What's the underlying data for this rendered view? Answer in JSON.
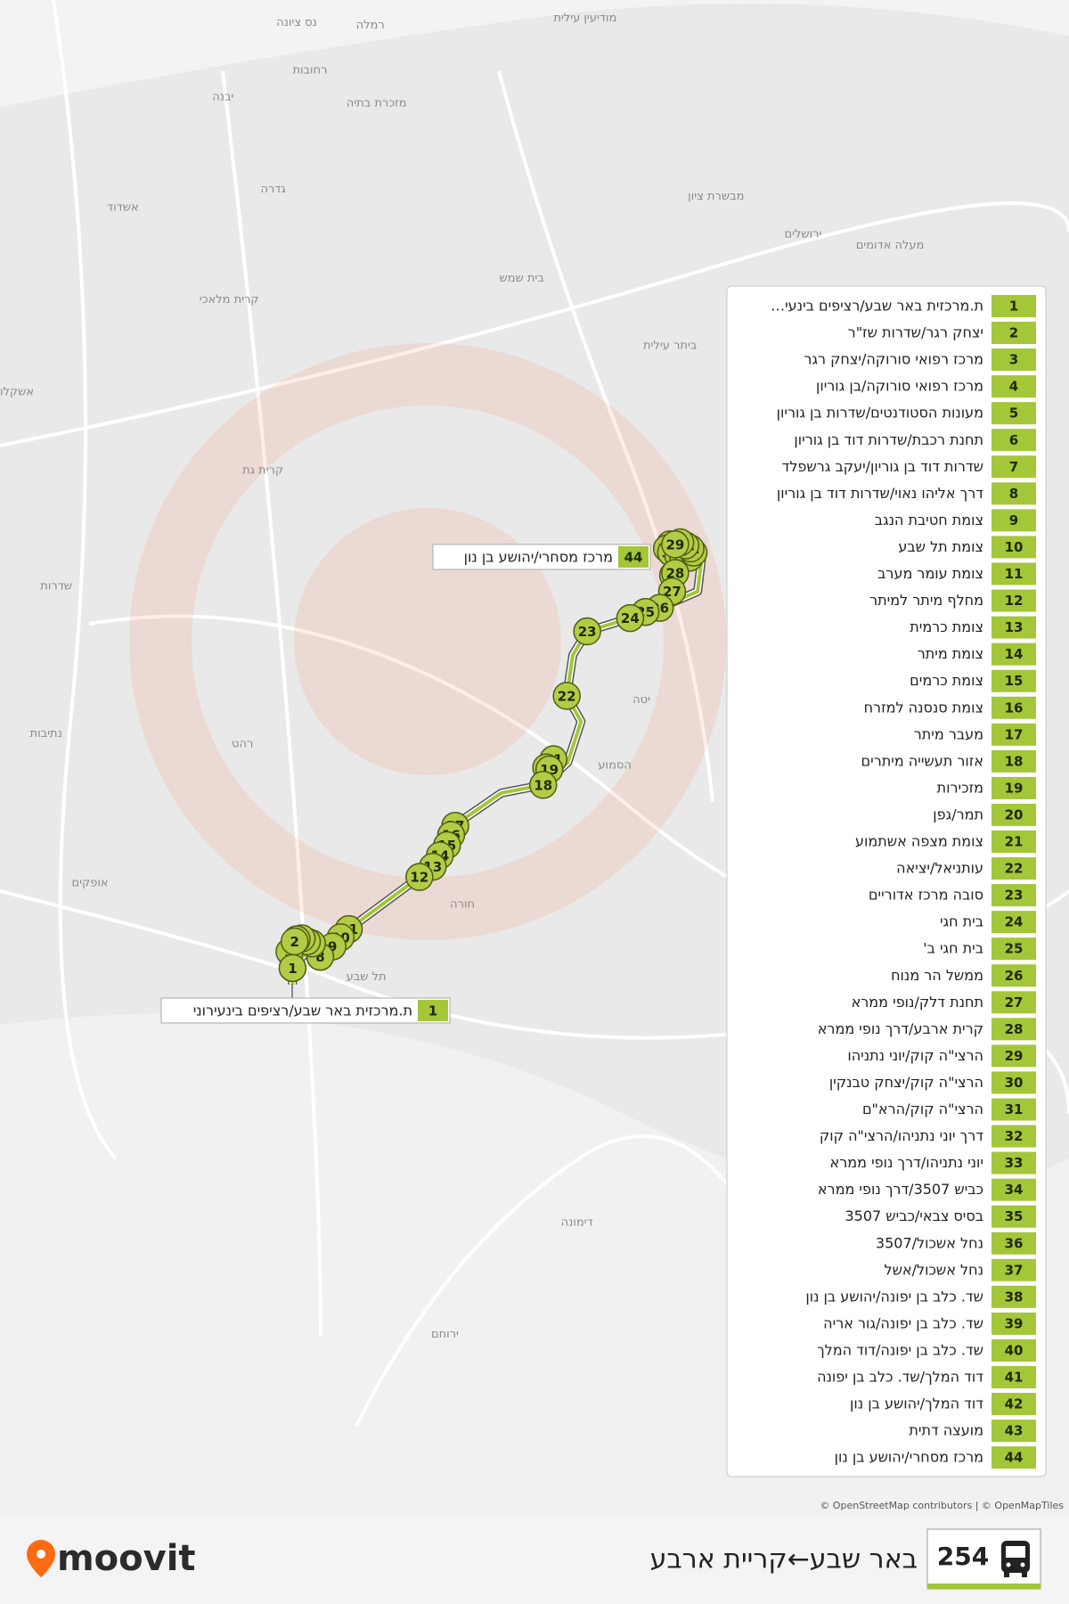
{
  "route": {
    "number": "254",
    "title": "באר שבע←קריית ארבע"
  },
  "logo": "moovit",
  "attribution": "© OpenStreetMap contributors | © OpenMapTiles",
  "callouts": [
    {
      "number": "1",
      "label": "ת.מרכזית באר שבע/רציפים בינעירוני"
    },
    {
      "number": "44",
      "label": "מרכז מסחרי/יהושע בן נון"
    }
  ],
  "map_labels": [
    "אשדוד",
    "יבנה",
    "רחובות",
    "נס ציונה",
    "רמלה",
    "מודיעין עילית",
    "גדרה",
    "מזכרת בתיה",
    "קרית מלאכי",
    "בית שמש",
    "ירושלים",
    "מעלה אדומים",
    "ביתר עילית",
    "אשקלון",
    "קרית גת",
    "שדרות",
    "נתיבות",
    "רהט",
    "אופקים",
    "דימונה",
    "ירוחם",
    "תל שבע",
    "חורה",
    "יטה",
    "הסמוע",
    "מבשרת ציון"
  ],
  "stops": [
    {
      "number": 1,
      "name": "ת.מרכזית באר שבע/רציפים בינעי…"
    },
    {
      "number": 2,
      "name": "יצחק רגר/שדרות שז\"ר"
    },
    {
      "number": 3,
      "name": "מרכז רפואי סורוקה/יצחק רגר"
    },
    {
      "number": 4,
      "name": "מרכז רפואי סורוקה/בן גוריון"
    },
    {
      "number": 5,
      "name": "מעונות הסטודנטים/שדרות בן גוריון"
    },
    {
      "number": 6,
      "name": "תחנת רכבת/שדרות דוד בן גוריון"
    },
    {
      "number": 7,
      "name": "שדרות דוד בן גוריון/יעקב גרשפלד"
    },
    {
      "number": 8,
      "name": "דרך אליהו נאוי/שדרות דוד בן גוריון"
    },
    {
      "number": 9,
      "name": "צומת חטיבת הנגב"
    },
    {
      "number": 10,
      "name": "צומת תל שבע"
    },
    {
      "number": 11,
      "name": "צומת עומר מערב"
    },
    {
      "number": 12,
      "name": "מחלף מיתר למיתר"
    },
    {
      "number": 13,
      "name": "צומת כרמית"
    },
    {
      "number": 14,
      "name": "צומת מיתר"
    },
    {
      "number": 15,
      "name": "צומת כרמים"
    },
    {
      "number": 16,
      "name": "צומת סנסנה למזרח"
    },
    {
      "number": 17,
      "name": "מעבר מיתר"
    },
    {
      "number": 18,
      "name": "אזור תעשייה מיתרים"
    },
    {
      "number": 19,
      "name": "מזכירות"
    },
    {
      "number": 20,
      "name": "תמר/גפן"
    },
    {
      "number": 21,
      "name": "צומת מצפה אשתמוע"
    },
    {
      "number": 22,
      "name": "עותניאל/יציאה"
    },
    {
      "number": 23,
      "name": "סובה מרכז אדוריים"
    },
    {
      "number": 24,
      "name": "בית חגי"
    },
    {
      "number": 25,
      "name": "בית חגי ב'"
    },
    {
      "number": 26,
      "name": "ממשל הר מנוח"
    },
    {
      "number": 27,
      "name": "תחנת דלק/נופי ממרא"
    },
    {
      "number": 28,
      "name": "קרית ארבע/דרך נופי ממרא"
    },
    {
      "number": 29,
      "name": "הרצי\"ה קוק/יוני נתניהו"
    },
    {
      "number": 30,
      "name": "הרצי\"ה קוק/יצחק טבנקין"
    },
    {
      "number": 31,
      "name": "הרצי\"ה קוק/הרא\"ם"
    },
    {
      "number": 32,
      "name": "דרך יוני נתניהו/הרצי\"ה קוק"
    },
    {
      "number": 33,
      "name": "יוני נתניהו/דרך נופי ממרא"
    },
    {
      "number": 34,
      "name": "כביש 3507/דרך נופי ממרא"
    },
    {
      "number": 35,
      "name": "בסיס צבאי/כביש 3507"
    },
    {
      "number": 36,
      "name": "נחל אשכול/3507"
    },
    {
      "number": 37,
      "name": "נחל אשכול/אשל"
    },
    {
      "number": 38,
      "name": "שד. כלב בן יפונה/יהושע בן נון"
    },
    {
      "number": 39,
      "name": "שד. כלב בן יפונה/גור אריה"
    },
    {
      "number": 40,
      "name": "שד. כלב בן יפונה/דוד המלך"
    },
    {
      "number": 41,
      "name": "דוד המלך/שד. כלב בן יפונה"
    },
    {
      "number": 42,
      "name": "דוד המלך/יהושע בן נון"
    },
    {
      "number": 43,
      "name": "מועצה דתית"
    },
    {
      "number": 44,
      "name": "מרכז מסחרי/יהושע בן נון"
    }
  ]
}
